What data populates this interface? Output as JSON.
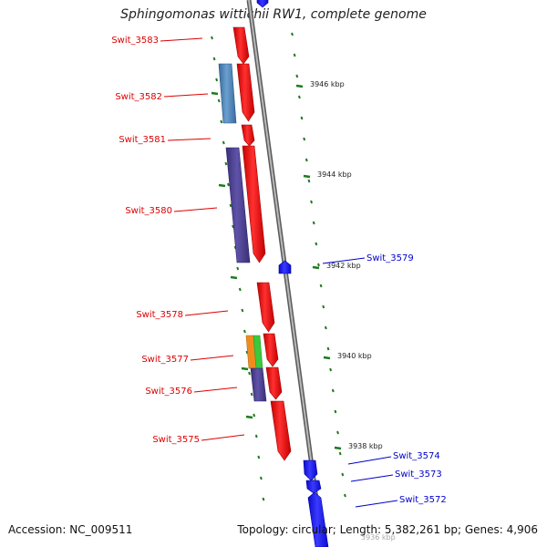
{
  "title": "Sphingomonas wittichii RW1, complete genome",
  "footer": {
    "accession": "Accession: NC_009511",
    "summary": "Topology: circular; Length: 5,382,261 bp; Genes: 4,906"
  },
  "colors": {
    "forward_gene": "#e60000",
    "reverse_gene": "#1a1aff",
    "cog_blue": "#4a7fb5",
    "cog_purple": "#4b3f8c",
    "cog_orange": "#f08c1e",
    "cog_green": "#3cc83c",
    "backbone": "#8a8a8a",
    "ticks": "#1f7a1f"
  },
  "left_genes": [
    {
      "id": "Swit_3583",
      "strand": "forward"
    },
    {
      "id": "Swit_3582",
      "strand": "forward",
      "cog_color": "cog_blue"
    },
    {
      "id": "Swit_3581",
      "strand": "forward"
    },
    {
      "id": "Swit_3580",
      "strand": "forward",
      "cog_color": "cog_purple"
    },
    {
      "id": "Swit_3578",
      "strand": "forward"
    },
    {
      "id": "Swit_3577",
      "strand": "forward",
      "cog_colors": [
        "cog_orange",
        "cog_green"
      ]
    },
    {
      "id": "Swit_3576",
      "strand": "forward",
      "cog_color": "cog_purple"
    },
    {
      "id": "Swit_3575",
      "strand": "forward"
    }
  ],
  "right_genes": [
    {
      "id": "Swit_3579",
      "strand": "reverse"
    },
    {
      "id": "Swit_3574",
      "strand": "reverse"
    },
    {
      "id": "Swit_3573",
      "strand": "reverse"
    },
    {
      "id": "Swit_3572",
      "strand": "reverse"
    }
  ],
  "position_ticks": [
    "3946 kbp",
    "3944 kbp",
    "3942 kbp",
    "3940 kbp",
    "3938 kbp"
  ],
  "faded_tick": "3936 kbp"
}
